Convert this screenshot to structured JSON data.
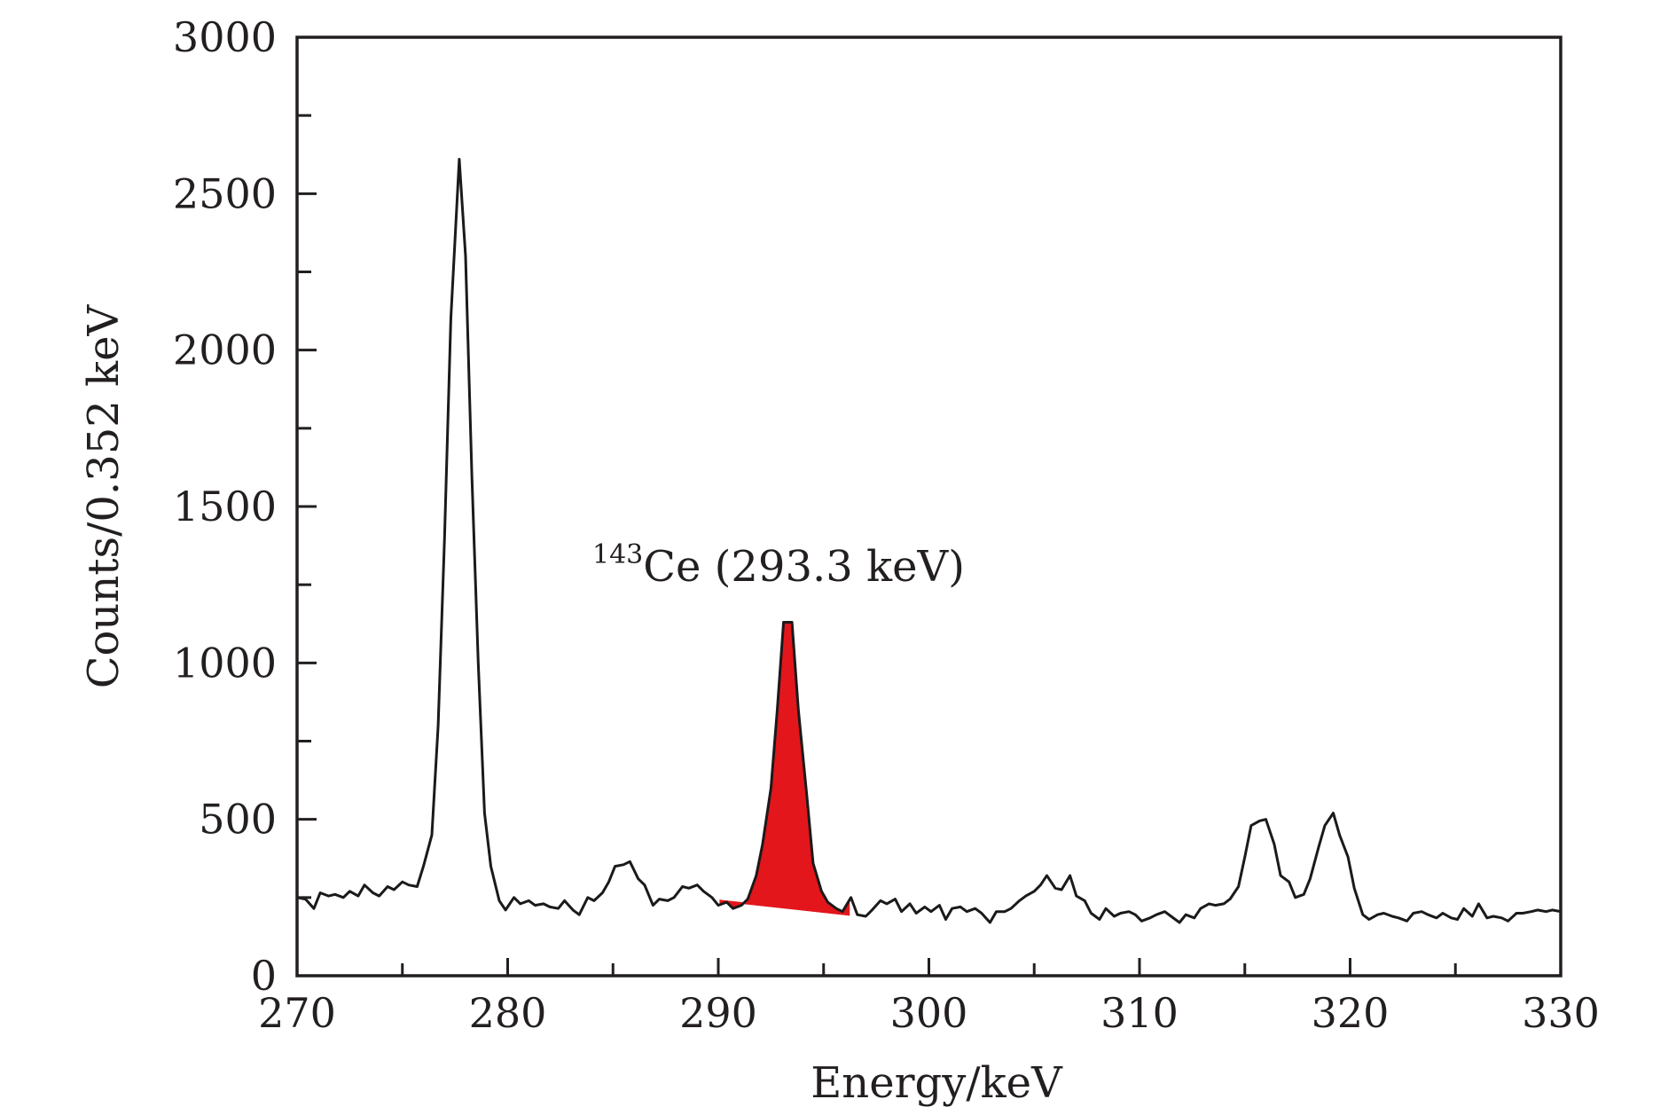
{
  "chart_data": {
    "type": "line",
    "title": "",
    "xlabel": "Energy/keV",
    "ylabel": "Counts/0.352 keV",
    "xlim": [
      270,
      330
    ],
    "ylim": [
      0,
      3000
    ],
    "xticks": [
      270,
      280,
      290,
      300,
      310,
      320,
      330
    ],
    "yticks": [
      0,
      500,
      1000,
      1500,
      2000,
      2500,
      3000
    ],
    "xtick_labels": [
      "270",
      "280",
      "290",
      "300",
      "310",
      "320",
      "330"
    ],
    "ytick_labels": [
      "0",
      "500",
      "1000",
      "1500",
      "2000",
      "2500",
      "3000"
    ],
    "grid": false,
    "legend": "none",
    "colors": {
      "line": "#1a1a1a",
      "highlight": "#e3161c",
      "axis": "#231f20"
    },
    "annotation": {
      "superscript": "143",
      "text": "Ce (293.3 keV)",
      "x": 293.3
    },
    "series": [
      {
        "values": [
          [
            270.0,
            250
          ],
          [
            270.4,
            245
          ],
          [
            270.8,
            215
          ],
          [
            271.1,
            265
          ],
          [
            271.5,
            255
          ],
          [
            271.8,
            260
          ],
          [
            272.2,
            250
          ],
          [
            272.5,
            270
          ],
          [
            272.9,
            255
          ],
          [
            273.2,
            290
          ],
          [
            273.6,
            265
          ],
          [
            273.9,
            255
          ],
          [
            274.3,
            285
          ],
          [
            274.6,
            275
          ],
          [
            275.0,
            300
          ],
          [
            275.3,
            290
          ],
          [
            275.7,
            285
          ],
          [
            276.0,
            350
          ],
          [
            276.4,
            450
          ],
          [
            276.7,
            800
          ],
          [
            277.0,
            1400
          ],
          [
            277.3,
            2100
          ],
          [
            277.7,
            2610
          ],
          [
            278.0,
            2300
          ],
          [
            278.3,
            1600
          ],
          [
            278.6,
            1000
          ],
          [
            278.9,
            520
          ],
          [
            279.2,
            350
          ],
          [
            279.6,
            240
          ],
          [
            279.9,
            210
          ],
          [
            280.3,
            250
          ],
          [
            280.6,
            230
          ],
          [
            281.0,
            240
          ],
          [
            281.3,
            225
          ],
          [
            281.7,
            230
          ],
          [
            282.0,
            220
          ],
          [
            282.4,
            215
          ],
          [
            282.7,
            240
          ],
          [
            283.1,
            210
          ],
          [
            283.4,
            195
          ],
          [
            283.8,
            250
          ],
          [
            284.1,
            240
          ],
          [
            284.5,
            265
          ],
          [
            284.8,
            300
          ],
          [
            285.1,
            350
          ],
          [
            285.5,
            355
          ],
          [
            285.8,
            365
          ],
          [
            286.2,
            310
          ],
          [
            286.5,
            290
          ],
          [
            286.9,
            225
          ],
          [
            287.2,
            245
          ],
          [
            287.6,
            240
          ],
          [
            287.9,
            250
          ],
          [
            288.3,
            285
          ],
          [
            288.6,
            280
          ],
          [
            289.0,
            290
          ],
          [
            289.3,
            270
          ],
          [
            289.7,
            250
          ],
          [
            290.0,
            225
          ],
          [
            290.4,
            235
          ],
          [
            290.7,
            215
          ],
          [
            291.1,
            225
          ],
          [
            291.4,
            245
          ],
          [
            291.8,
            320
          ],
          [
            292.1,
            420
          ],
          [
            292.5,
            600
          ],
          [
            292.8,
            850
          ],
          [
            293.1,
            1130
          ],
          [
            293.5,
            1130
          ],
          [
            293.8,
            850
          ],
          [
            294.2,
            580
          ],
          [
            294.5,
            360
          ],
          [
            294.9,
            270
          ],
          [
            295.2,
            235
          ],
          [
            295.6,
            215
          ],
          [
            295.9,
            205
          ],
          [
            296.3,
            250
          ],
          [
            296.6,
            195
          ],
          [
            297.0,
            190
          ],
          [
            297.3,
            210
          ],
          [
            297.7,
            240
          ],
          [
            298.0,
            230
          ],
          [
            298.4,
            245
          ],
          [
            298.7,
            205
          ],
          [
            299.1,
            230
          ],
          [
            299.4,
            200
          ],
          [
            299.8,
            220
          ],
          [
            300.1,
            205
          ],
          [
            300.5,
            225
          ],
          [
            300.8,
            180
          ],
          [
            301.1,
            215
          ],
          [
            301.5,
            220
          ],
          [
            301.8,
            205
          ],
          [
            302.2,
            215
          ],
          [
            302.5,
            200
          ],
          [
            302.9,
            170
          ],
          [
            303.2,
            205
          ],
          [
            303.6,
            205
          ],
          [
            303.9,
            215
          ],
          [
            304.3,
            240
          ],
          [
            304.6,
            255
          ],
          [
            305.0,
            270
          ],
          [
            305.3,
            290
          ],
          [
            305.6,
            320
          ],
          [
            306.0,
            280
          ],
          [
            306.3,
            275
          ],
          [
            306.7,
            320
          ],
          [
            307.0,
            255
          ],
          [
            307.4,
            240
          ],
          [
            307.7,
            200
          ],
          [
            308.1,
            180
          ],
          [
            308.4,
            215
          ],
          [
            308.8,
            190
          ],
          [
            309.1,
            200
          ],
          [
            309.5,
            205
          ],
          [
            309.8,
            195
          ],
          [
            310.1,
            175
          ],
          [
            310.5,
            185
          ],
          [
            310.8,
            195
          ],
          [
            311.2,
            205
          ],
          [
            311.5,
            190
          ],
          [
            311.9,
            170
          ],
          [
            312.2,
            195
          ],
          [
            312.6,
            185
          ],
          [
            312.9,
            215
          ],
          [
            313.3,
            230
          ],
          [
            313.6,
            225
          ],
          [
            314.0,
            230
          ],
          [
            314.3,
            245
          ],
          [
            314.7,
            285
          ],
          [
            315.0,
            380
          ],
          [
            315.3,
            480
          ],
          [
            315.7,
            495
          ],
          [
            316.0,
            500
          ],
          [
            316.4,
            420
          ],
          [
            316.7,
            320
          ],
          [
            317.1,
            300
          ],
          [
            317.4,
            250
          ],
          [
            317.8,
            260
          ],
          [
            318.1,
            310
          ],
          [
            318.5,
            410
          ],
          [
            318.8,
            480
          ],
          [
            319.2,
            520
          ],
          [
            319.5,
            450
          ],
          [
            319.9,
            380
          ],
          [
            320.2,
            280
          ],
          [
            320.6,
            195
          ],
          [
            320.9,
            180
          ],
          [
            321.3,
            195
          ],
          [
            321.6,
            200
          ],
          [
            322.0,
            190
          ],
          [
            322.3,
            185
          ],
          [
            322.7,
            175
          ],
          [
            323.0,
            200
          ],
          [
            323.4,
            205
          ],
          [
            323.7,
            195
          ],
          [
            324.1,
            185
          ],
          [
            324.4,
            200
          ],
          [
            324.8,
            185
          ],
          [
            325.1,
            180
          ],
          [
            325.4,
            215
          ],
          [
            325.8,
            190
          ],
          [
            326.1,
            230
          ],
          [
            326.5,
            185
          ],
          [
            326.8,
            190
          ],
          [
            327.2,
            185
          ],
          [
            327.5,
            175
          ],
          [
            327.9,
            200
          ],
          [
            328.2,
            200
          ],
          [
            328.6,
            205
          ],
          [
            328.9,
            210
          ],
          [
            329.3,
            205
          ],
          [
            329.6,
            210
          ],
          [
            330.0,
            205
          ]
        ]
      }
    ],
    "highlight_region": {
      "x_range": [
        290.1,
        296.2
      ],
      "baseline": [
        [
          290.1,
          240
        ],
        [
          296.2,
          195
        ]
      ]
    }
  }
}
